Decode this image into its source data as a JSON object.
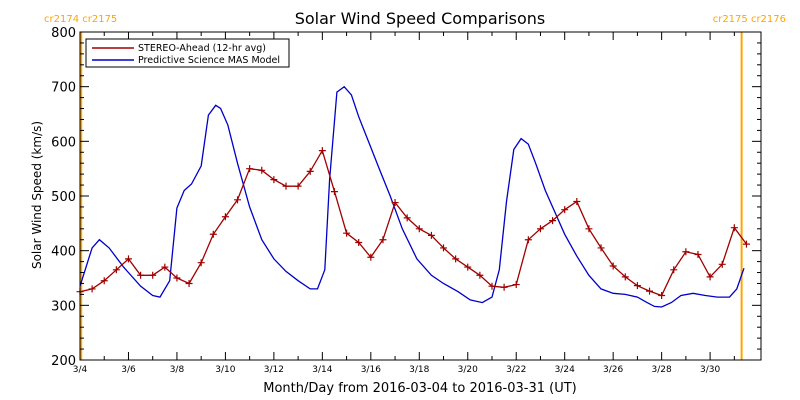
{
  "chart_data": {
    "type": "line",
    "title": "Solar Wind Speed Comparisons",
    "xlabel": "Month/Day from 2016-03-04 to 2016-03-31 (UT)",
    "ylabel": "Solar Wind Speed (km/s)",
    "xlim": [
      0,
      28.1
    ],
    "ylim": [
      200,
      800
    ],
    "y_ticks": [
      200,
      300,
      400,
      500,
      600,
      700,
      800
    ],
    "x_ticks": [
      {
        "day": 0,
        "label": "3/4"
      },
      {
        "day": 2,
        "label": "3/6"
      },
      {
        "day": 4,
        "label": "3/8"
      },
      {
        "day": 6,
        "label": "3/10"
      },
      {
        "day": 8,
        "label": "3/12"
      },
      {
        "day": 10,
        "label": "3/14"
      },
      {
        "day": 12,
        "label": "3/16"
      },
      {
        "day": 14,
        "label": "3/18"
      },
      {
        "day": 16,
        "label": "3/20"
      },
      {
        "day": 18,
        "label": "3/22"
      },
      {
        "day": 20,
        "label": "3/24"
      },
      {
        "day": 22,
        "label": "3/26"
      },
      {
        "day": 24,
        "label": "3/28"
      },
      {
        "day": 26,
        "label": "3/30"
      }
    ],
    "legend_position": "top-left",
    "grid": false,
    "rotation_markers": [
      {
        "day": 0.05,
        "label": "cr2174 cr2175",
        "side": "left",
        "color": "#ffa500"
      },
      {
        "day": 27.3,
        "label": "cr2175 cr2176",
        "side": "right",
        "color": "#ffa500"
      }
    ],
    "series": [
      {
        "name": "STEREO-Ahead (12-hr avg)",
        "color": "#a00000",
        "markers": "plus",
        "x": [
          0,
          0.5,
          1,
          1.5,
          2,
          2.5,
          3,
          3.5,
          4,
          4.5,
          5,
          5.5,
          6,
          6.5,
          7,
          7.5,
          8,
          8.5,
          9,
          9.5,
          10,
          10.5,
          11,
          11.5,
          12,
          12.5,
          13,
          13.5,
          14,
          14.5,
          15,
          15.5,
          16,
          16.5,
          17,
          17.5,
          18,
          18.5,
          19,
          19.5,
          20,
          20.5,
          21,
          21.5,
          22,
          22.5,
          23,
          23.5,
          24,
          24.5,
          25,
          25.5,
          26,
          26.5,
          27,
          27.5
        ],
        "y": [
          325,
          330,
          345,
          365,
          385,
          355,
          355,
          370,
          350,
          340,
          378,
          430,
          462,
          493,
          550,
          547,
          530,
          518,
          518,
          545,
          583,
          508,
          432,
          415,
          388,
          420,
          488,
          460,
          440,
          428,
          405,
          385,
          370,
          355,
          335,
          333,
          338,
          420,
          440,
          455,
          475,
          490,
          440,
          405,
          372,
          352,
          336,
          326,
          318,
          365,
          398,
          393,
          352,
          375,
          442,
          412
        ]
      },
      {
        "name": "Predictive Science MAS Model",
        "color": "#0000c8",
        "markers": "none",
        "x": [
          0,
          0.5,
          0.8,
          1.2,
          1.8,
          2.5,
          3,
          3.3,
          3.7,
          4,
          4.3,
          4.6,
          5,
          5.3,
          5.6,
          5.8,
          6.1,
          6.5,
          7,
          7.5,
          8,
          8.5,
          9,
          9.5,
          9.8,
          10.1,
          10.3,
          10.6,
          10.9,
          11.2,
          11.5,
          11.9,
          12.3,
          12.8,
          13.3,
          13.9,
          14.5,
          15,
          15.6,
          16.1,
          16.6,
          17,
          17.3,
          17.6,
          17.9,
          18.2,
          18.5,
          18.8,
          19.2,
          19.6,
          20,
          20.5,
          21,
          21.5,
          22,
          22.5,
          23,
          23.4,
          23.7,
          24,
          24.4,
          24.8,
          25.3,
          25.8,
          26.3,
          26.8,
          27.1,
          27.4
        ],
        "y": [
          335,
          405,
          420,
          405,
          370,
          335,
          318,
          315,
          345,
          478,
          510,
          522,
          555,
          648,
          666,
          660,
          630,
          560,
          480,
          420,
          385,
          362,
          345,
          330,
          330,
          365,
          530,
          690,
          700,
          685,
          645,
          600,
          555,
          500,
          440,
          385,
          355,
          340,
          325,
          310,
          305,
          315,
          365,
          490,
          585,
          605,
          595,
          560,
          510,
          470,
          430,
          390,
          355,
          330,
          322,
          320,
          315,
          305,
          298,
          297,
          305,
          318,
          322,
          318,
          315,
          315,
          330,
          368
        ]
      }
    ]
  }
}
